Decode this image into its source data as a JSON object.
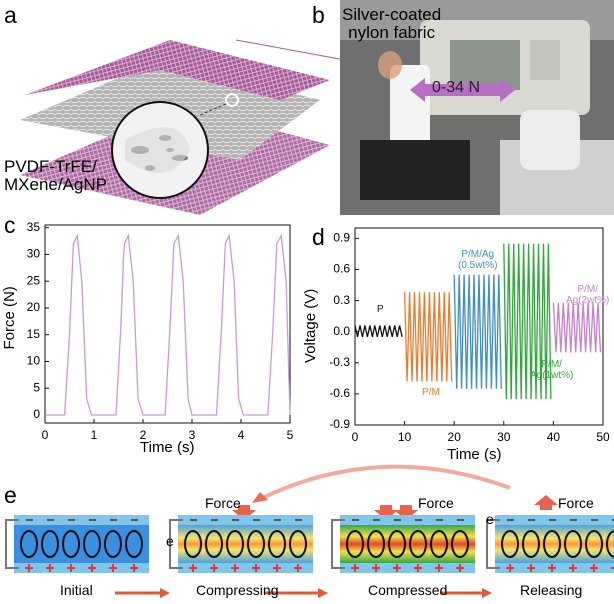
{
  "panel_labels": [
    "a",
    "b",
    "c",
    "d",
    "e"
  ],
  "panel_a": {
    "top_label": "Silver-coated\nnylon fabric",
    "bottom_label": "PVDF-TrFE/\nMXene/AgNP"
  },
  "panel_b": {
    "force_range": "0-34 N"
  },
  "chart_data": [
    {
      "type": "line",
      "xlabel": "Time (s)",
      "ylabel": "Force (N)",
      "color": "#c99ad8",
      "x": [
        0,
        0.4,
        0.5,
        0.58,
        0.66,
        0.75,
        0.85,
        0.95,
        1.45,
        1.55,
        1.6,
        1.62,
        1.7,
        1.8,
        1.9,
        2.0,
        2.45,
        2.55,
        2.63,
        2.72,
        2.82,
        2.92,
        3.0,
        3.5,
        3.6,
        3.68,
        3.76,
        3.86,
        3.95,
        4.05,
        4.55,
        4.65,
        4.73,
        4.82,
        4.92,
        5.0
      ],
      "values": [
        0,
        0,
        15,
        32,
        33.5,
        25,
        3,
        0,
        0,
        17,
        29,
        32,
        33.5,
        25,
        3,
        0,
        0,
        16,
        32,
        33.5,
        25,
        3,
        0,
        0,
        16,
        32,
        33.5,
        25,
        3,
        0,
        0,
        16,
        32,
        33.5,
        25,
        0
      ],
      "xlim": [
        0,
        5
      ],
      "xticks": [
        0,
        1,
        2,
        3,
        4,
        5
      ],
      "ylim": [
        -1.5,
        35.5
      ],
      "yticks": [
        0,
        5,
        10,
        15,
        20,
        25,
        30,
        35
      ]
    },
    {
      "type": "line",
      "xlabel": "Time (s)",
      "ylabel": "Voltage (V)",
      "xlim": [
        0,
        50
      ],
      "xticks": [
        0,
        10,
        20,
        30,
        40,
        50
      ],
      "ylim": [
        -0.9,
        1.0
      ],
      "yticks": [
        -0.9,
        -0.6,
        -0.3,
        {
          "value": 0,
          "label": "0.0"
        },
        0.3,
        0.6,
        0.9
      ],
      "series": [
        {
          "name": "P",
          "color": "#111111",
          "x": [
            0,
            0.5,
            1,
            1.5,
            2,
            2.5,
            3,
            3.5,
            4,
            4.5,
            5,
            5.5,
            6,
            6.5,
            7,
            7.5,
            8,
            8.5,
            9,
            9.5
          ],
          "values": [
            0.06,
            -0.05,
            0.06,
            -0.05,
            0.06,
            -0.05,
            0.06,
            -0.05,
            0.06,
            -0.05,
            0.06,
            -0.05,
            0.06,
            -0.05,
            0.06,
            -0.05,
            0.06,
            -0.05,
            0.06,
            -0.05
          ]
        },
        {
          "name": "P/M",
          "color": "#f07a2c",
          "x": [
            10,
            10.5,
            11,
            11.5,
            12,
            12.5,
            13,
            13.5,
            14,
            14.5,
            15,
            15.5,
            16,
            16.5,
            17,
            17.5,
            18,
            18.5,
            19,
            19.5
          ],
          "values": [
            0.38,
            -0.48,
            0.38,
            -0.48,
            0.38,
            -0.48,
            0.38,
            -0.48,
            0.38,
            -0.48,
            0.38,
            -0.48,
            0.38,
            -0.48,
            0.38,
            -0.48,
            0.38,
            -0.48,
            0.38,
            -0.48
          ]
        },
        {
          "name": "P/M/Ag\n(0.5wt%)",
          "color": "#3d8fc6",
          "x": [
            20,
            20.5,
            21,
            21.5,
            22,
            22.5,
            23,
            23.5,
            24,
            24.5,
            25,
            25.5,
            26,
            26.5,
            27,
            27.5,
            28,
            28.5,
            29,
            29.5
          ],
          "values": [
            0.55,
            -0.55,
            0.55,
            -0.55,
            0.55,
            -0.55,
            0.55,
            -0.55,
            0.55,
            -0.55,
            0.55,
            -0.55,
            0.55,
            -0.55,
            0.55,
            -0.55,
            0.55,
            -0.55,
            0.55,
            -0.55
          ]
        },
        {
          "name": "P/M/\nAg(1wt%)",
          "color": "#2fa83a",
          "x": [
            30,
            30.5,
            31,
            31.5,
            32,
            32.5,
            33,
            33.5,
            34,
            34.5,
            35,
            35.5,
            36,
            36.5,
            37,
            37.5,
            38,
            38.5,
            39,
            39.5
          ],
          "values": [
            0.85,
            -0.65,
            0.85,
            -0.65,
            0.85,
            -0.65,
            0.85,
            -0.65,
            0.85,
            -0.65,
            0.85,
            -0.65,
            0.85,
            -0.65,
            0.85,
            -0.65,
            0.85,
            -0.65,
            0.85,
            -0.65
          ]
        },
        {
          "name": "P/M/\nAg(2wt%)",
          "color": "#c77fd0",
          "x": [
            40,
            40.5,
            41,
            41.5,
            42,
            42.5,
            43,
            43.5,
            44,
            44.5,
            45,
            45.5,
            46,
            46.5,
            47,
            47.5,
            48,
            48.5,
            49,
            49.5
          ],
          "values": [
            0.28,
            -0.2,
            0.28,
            -0.2,
            0.28,
            -0.2,
            0.28,
            -0.2,
            0.28,
            -0.2,
            0.28,
            -0.2,
            0.28,
            -0.2,
            0.28,
            -0.2,
            0.28,
            -0.2,
            0.28,
            -0.2
          ]
        }
      ]
    }
  ],
  "panel_e": {
    "forces": [
      "Force",
      "Force",
      "Force"
    ],
    "electrons": [
      "e",
      "e"
    ],
    "stages": [
      "Initial",
      "Compressing",
      "Compressed",
      "Releasing"
    ]
  }
}
